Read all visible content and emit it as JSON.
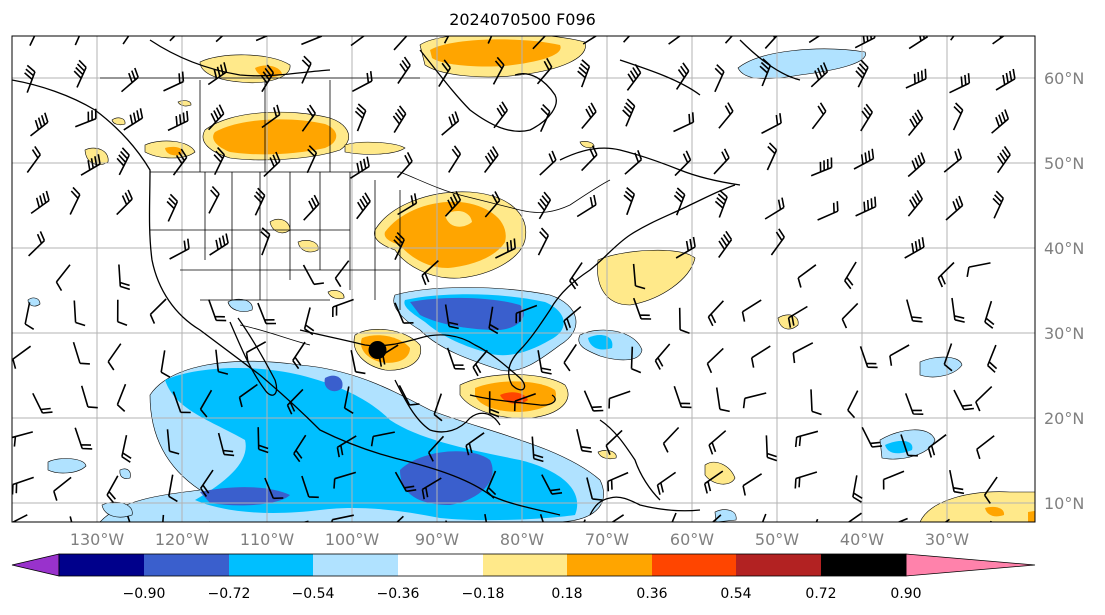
{
  "title": "2024070500 F096",
  "map": {
    "lon_labels": [
      "130°W",
      "120°W",
      "110°W",
      "100°W",
      "90°W",
      "80°W",
      "70°W",
      "60°W",
      "50°W",
      "40°W",
      "30°W"
    ],
    "lat_labels": [
      "60°N",
      "50°N",
      "40°N",
      "30°N",
      "20°N",
      "10°N"
    ],
    "marker": {
      "name": "storm-center-marker",
      "lon": -97.0,
      "lat": 28.0
    }
  },
  "colorbar": {
    "tick_labels": [
      "−0.90",
      "−0.72",
      "−0.54",
      "−0.36",
      "−0.18",
      "0.18",
      "0.36",
      "0.54",
      "0.72",
      "0.90"
    ],
    "colors": {
      "under": "#9932cc",
      "bin_1": "#00008b",
      "bin_2": "#3a5fcd",
      "bin_3": "#00bfff",
      "bin_4": "#b0e2ff",
      "bin_5": "#ffffff",
      "bin_6": "#ffe98a",
      "bin_7": "#ffa500",
      "bin_8": "#ff4500",
      "bin_9": "#b22222",
      "over": "#ff82ab"
    }
  }
}
